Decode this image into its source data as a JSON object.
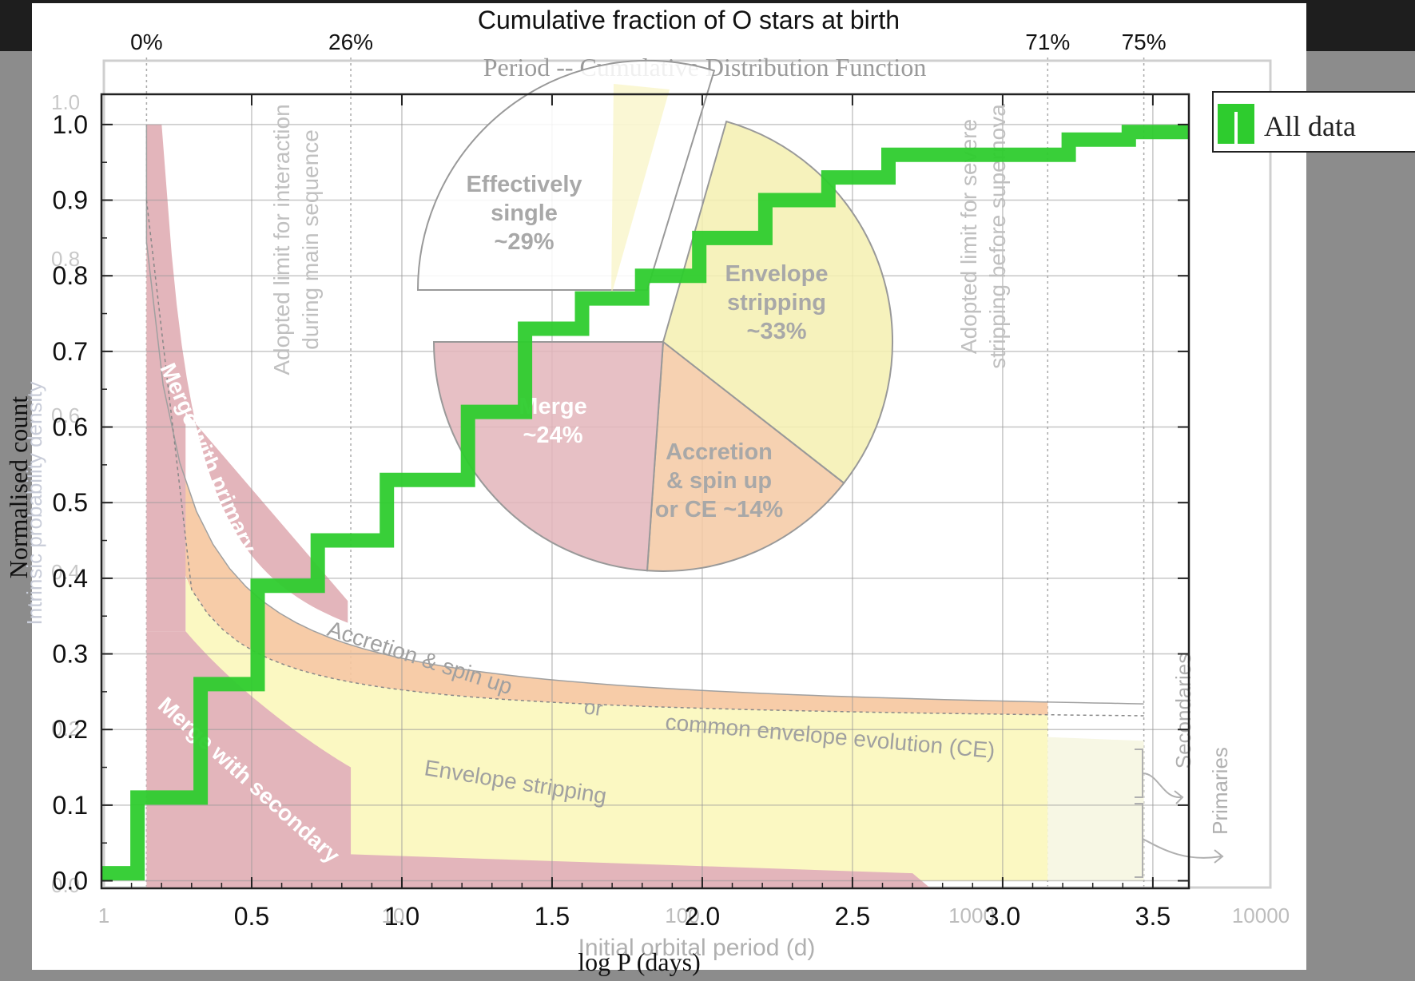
{
  "top_axis": {
    "title": "Cumulative fraction of O stars at birth",
    "ticks": [
      {
        "x": 0.15,
        "label": "0%"
      },
      {
        "x": 0.83,
        "label": "26%"
      },
      {
        "x": 3.15,
        "label": "71%"
      },
      {
        "x": 3.47,
        "label": "75%"
      }
    ]
  },
  "ghost": {
    "title": "Period -- Cumulative Distribution Function",
    "ylabel": "Intrinsic probability density",
    "xlabel": "Initial orbital period (d)",
    "xticks": [
      {
        "x": 0.0,
        "label": "1"
      },
      {
        "x": 1.0,
        "label": "10"
      },
      {
        "x": 2.0,
        "label": "100"
      },
      {
        "x": 3.0,
        "label": "1000"
      },
      {
        "x": 4.0,
        "label": "10000"
      }
    ],
    "yticks": [
      {
        "y": 1.0,
        "label": "1.0"
      },
      {
        "y": 0.8,
        "label": "0.8"
      },
      {
        "y": 0.6,
        "label": "0.6"
      },
      {
        "y": 0.4,
        "label": "0.4"
      },
      {
        "y": 0.2,
        "label": "0.2"
      },
      {
        "y": 0.0,
        "label": "0.0"
      }
    ]
  },
  "annotations": {
    "interaction_limit": [
      "Adopted limit for interaction",
      "during main sequence"
    ],
    "supernova_limit": [
      "Adopted limit for severe",
      "stripping before supernova"
    ],
    "merge_primary": "Merge with primary",
    "merge_secondary": "Merge with secondary",
    "accretion_band": "Accretion & spin up",
    "or": "or",
    "ce_band": "common envelope evolution (CE)",
    "envelope_band": "Envelope stripping",
    "secondaries": "Secondaries",
    "primaries": "Primaries"
  },
  "pie": {
    "slices": [
      {
        "name": "Effectively single",
        "lines": [
          "Effectively",
          "single",
          "~29%"
        ],
        "value": 29,
        "color": "#ffffff"
      },
      {
        "name": "Envelope stripping",
        "lines": [
          "Envelope",
          "stripping",
          "~33%"
        ],
        "value": 33,
        "color": "#f5f0b0"
      },
      {
        "name": "Accretion & spin up or CE",
        "lines": [
          "Accretion",
          "& spin up",
          "or CE ~14%"
        ],
        "value": 14,
        "color": "#f5c9a3"
      },
      {
        "name": "Merge",
        "lines": [
          "Merge",
          "~24%"
        ],
        "value": 24,
        "color": "#e3b5bb"
      }
    ]
  },
  "chart_data": {
    "type": "line",
    "title": "",
    "xlabel": "log P (days)",
    "ylabel": "Normalised count",
    "xlim": [
      0.0,
      3.62
    ],
    "ylim": [
      -0.01,
      1.04
    ],
    "xticks": [
      0.5,
      1.0,
      1.5,
      2.0,
      2.5,
      3.0,
      3.5
    ],
    "yticks": [
      0.0,
      0.1,
      0.2,
      0.3,
      0.4,
      0.5,
      0.6,
      0.7,
      0.8,
      0.9,
      1.0
    ],
    "grid": true,
    "legend": "top-right outside",
    "series": [
      {
        "name": "All data",
        "color": "#2ecc2e",
        "step": true,
        "x": [
          0.0,
          0.12,
          0.12,
          0.33,
          0.33,
          0.52,
          0.52,
          0.72,
          0.72,
          0.95,
          0.95,
          1.22,
          1.22,
          1.41,
          1.41,
          1.6,
          1.6,
          1.8,
          1.8,
          1.99,
          1.99,
          2.21,
          2.21,
          2.42,
          2.42,
          2.62,
          2.62,
          3.22,
          3.22,
          3.42,
          3.42,
          3.62
        ],
        "y": [
          0.01,
          0.01,
          0.11,
          0.11,
          0.26,
          0.26,
          0.39,
          0.39,
          0.45,
          0.45,
          0.53,
          0.53,
          0.62,
          0.62,
          0.73,
          0.73,
          0.77,
          0.77,
          0.8,
          0.8,
          0.85,
          0.85,
          0.9,
          0.9,
          0.93,
          0.93,
          0.96,
          0.96,
          0.98,
          0.98,
          0.99,
          0.99
        ]
      }
    ]
  }
}
